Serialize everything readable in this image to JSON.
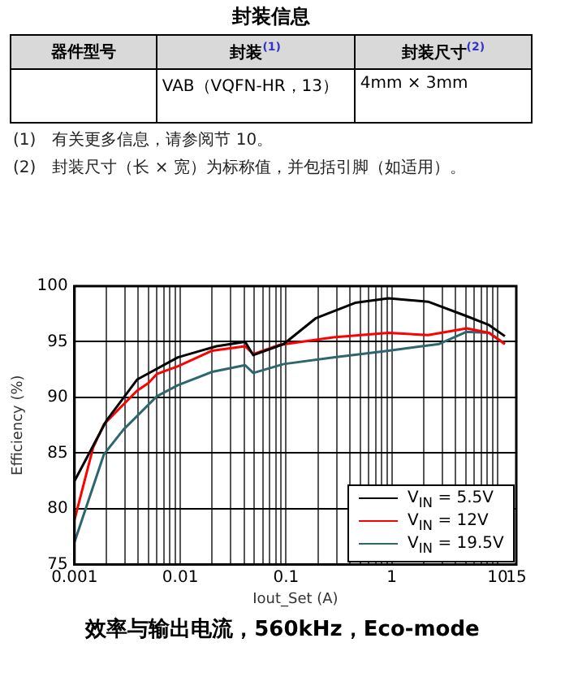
{
  "chart_data": [
    {
      "type": "other",
      "title": "封装信息",
      "categories": [
        "器件型号",
        "封装$^{(1)}$",
        "封装尺寸$^{(2)}$"
      ],
      "cell_labels": [
        [
          null,
          "VAB（VQFN-HR，13）",
          "4mm × 3mm"
        ]
      ],
      "annotations": [
        "(1)　有关更多信息，请参阅节 10。",
        "(2)　封装尺寸（长 × 宽）为标称值，并包括引脚（如适用）。"
      ]
    },
    {
      "type": "line",
      "title": "效率与输出电流，560kHz，Eco-mode",
      "xlabel": "Iout_Set (A)",
      "ylabel": "Efficiency (%)",
      "log": "x",
      "grid": true,
      "legend": "bottom right",
      "marker": "none",
      "line_style": "solid",
      "xlim": [
        0.001,
        15
      ],
      "ylim": [
        75,
        100
      ],
      "xticks": [
        0.001,
        {
          "value": 0.002,
          "label": null
        },
        {
          "value": 0.003,
          "label": null
        },
        {
          "value": 0.004,
          "label": null
        },
        {
          "value": 0.005,
          "label": null
        },
        {
          "value": 0.006,
          "label": null
        },
        {
          "value": 0.007,
          "label": null
        },
        {
          "value": 0.008,
          "label": null
        },
        {
          "value": 0.009,
          "label": null
        },
        0.01,
        {
          "value": 0.02,
          "label": null
        },
        {
          "value": 0.03,
          "label": null
        },
        {
          "value": 0.04,
          "label": null
        },
        {
          "value": 0.05,
          "label": null
        },
        {
          "value": 0.06,
          "label": null
        },
        {
          "value": 0.07,
          "label": null
        },
        {
          "value": 0.08,
          "label": null
        },
        {
          "value": 0.09,
          "label": null
        },
        0.1,
        {
          "value": 0.2,
          "label": null
        },
        {
          "value": 0.3,
          "label": null
        },
        {
          "value": 0.4,
          "label": null
        },
        {
          "value": 0.5,
          "label": null
        },
        {
          "value": 0.6,
          "label": null
        },
        {
          "value": 0.7,
          "label": null
        },
        {
          "value": 0.8,
          "label": null
        },
        {
          "value": 0.9,
          "label": null
        },
        1,
        {
          "value": 2,
          "label": null
        },
        {
          "value": 3,
          "label": null
        },
        {
          "value": 4,
          "label": null
        },
        {
          "value": 5,
          "label": null
        },
        {
          "value": 6,
          "label": null
        },
        {
          "value": 7,
          "label": null
        },
        {
          "value": 8,
          "label": null
        },
        {
          "value": 9,
          "label": null
        },
        10,
        15
      ],
      "yticks": [
        75,
        80,
        85,
        90,
        95,
        100
      ],
      "series": [
        {
          "name": "V$_{IN}$ = 5.5V",
          "color": "#000000",
          "x": [
            0.001,
            0.002,
            0.0039,
            0.0095,
            0.022,
            0.041,
            0.049,
            0.095,
            0.19,
            0.45,
            0.93,
            2.2,
            5.1,
            8.3,
            11.7
          ],
          "values": [
            82.5,
            87.9,
            91.6,
            93.6,
            94.6,
            95.0,
            93.8,
            94.8,
            97.1,
            98.5,
            98.9,
            98.6,
            97.3,
            96.5,
            95.5
          ]
        },
        {
          "name": "V$_{IN}$ = 12V",
          "color": "#ff0000",
          "x": [
            0.001,
            0.0015,
            0.0019,
            0.0039,
            0.005,
            0.006,
            0.0095,
            0.02,
            0.041,
            0.049,
            0.085,
            0.28,
            0.93,
            2.2,
            5.1,
            8.3,
            11.7
          ],
          "values": [
            79,
            85.5,
            87.6,
            90.6,
            91.3,
            92.1,
            92.8,
            94.2,
            94.6,
            93.9,
            94.7,
            95.4,
            95.8,
            95.6,
            96.2,
            95.8,
            94.8
          ]
        },
        {
          "name": "V$_{IN}$ = 19.5V",
          "color": "#2e6670",
          "x": [
            0.001,
            0.0019,
            0.0029,
            0.006,
            0.0095,
            0.02,
            0.041,
            0.049,
            0.095,
            0.28,
            0.93,
            2.8,
            5.1,
            8.3,
            11.7
          ],
          "values": [
            77,
            84.9,
            87.1,
            90.1,
            91.1,
            92.3,
            92.9,
            92.2,
            93.0,
            93.6,
            94.2,
            94.8,
            95.9,
            95.8,
            94.8
          ]
        }
      ]
    }
  ]
}
